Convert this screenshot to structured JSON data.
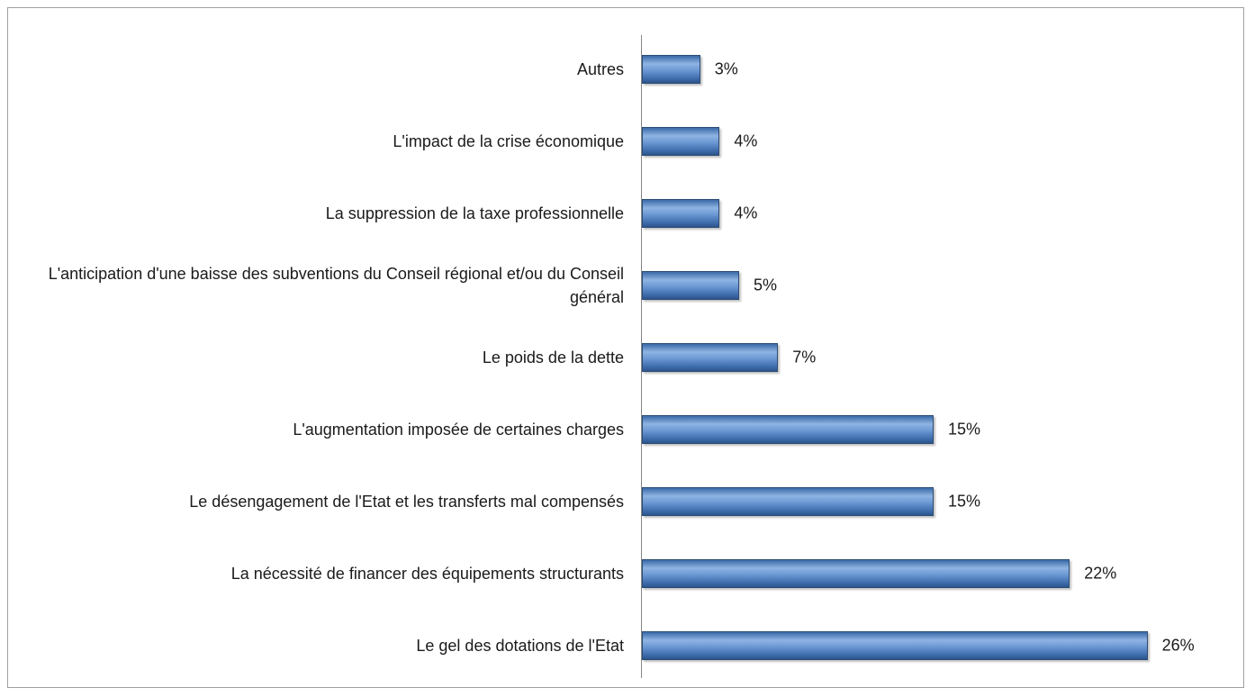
{
  "chart_data": {
    "type": "bar",
    "orientation": "horizontal",
    "categories": [
      "Autres",
      "L'impact de la crise économique",
      "La suppression de la taxe professionnelle",
      "L'anticipation d'une baisse des subventions du Conseil régional et/ou du Conseil général",
      "Le poids de la dette",
      "L'augmentation imposée de certaines charges",
      "Le désengagement de l'Etat et les transferts mal compensés",
      "La nécessité de financer des équipements structurants",
      "Le gel des dotations de l'Etat"
    ],
    "values": [
      3,
      4,
      4,
      5,
      7,
      15,
      15,
      22,
      26
    ],
    "value_labels": [
      "3%",
      "4%",
      "4%",
      "5%",
      "7%",
      "15%",
      "15%",
      "22%",
      "26%"
    ],
    "color": "#4f81bd"
  }
}
